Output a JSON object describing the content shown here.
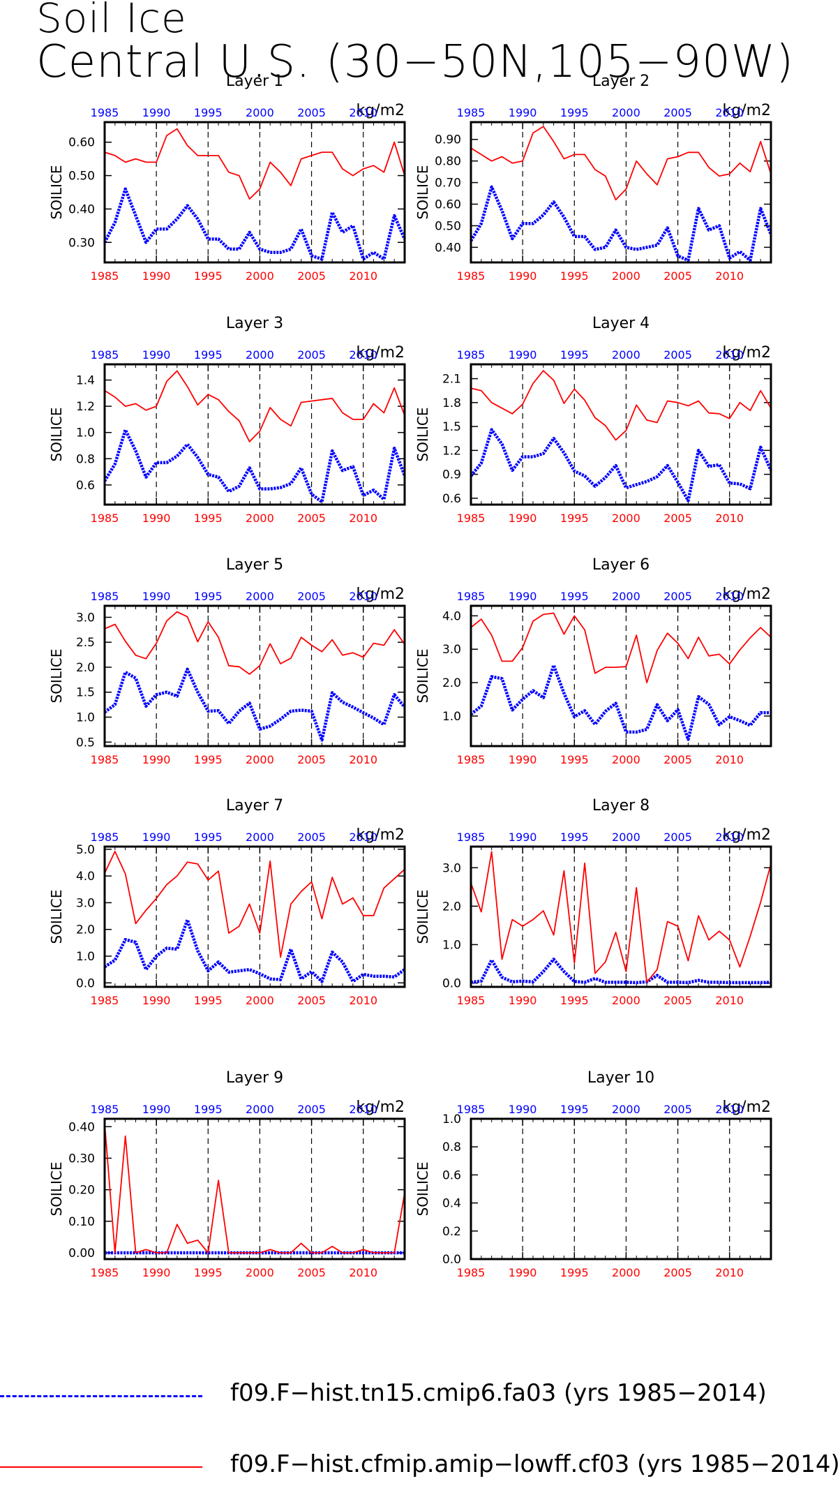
{
  "title": {
    "line1": "Soil Ice",
    "line2": "Central U.S. (30−50N,105−90W)"
  },
  "colors": {
    "blue_series": "#0000ff",
    "red_series": "#ff0000",
    "axis": "#000000",
    "top_axis_labels": "#0000ff",
    "bottom_axis_labels": "#ff0000",
    "grid": "#000000"
  },
  "legend": [
    {
      "label": "f09.F−hist.tn15.cmip6.fa03 (yrs 1985−2014)",
      "color": "#0000ff",
      "style": "dashed"
    },
    {
      "label": "f09.F−hist.cfmip.amip−lowff.cf03 (yrs 1985−2014)",
      "color": "#ff0000",
      "style": "solid"
    }
  ],
  "chart_data": [
    {
      "type": "line",
      "title": "Layer 1",
      "units": "kg/m2",
      "ylabel": "SOILICE",
      "xlim": [
        1985,
        2014
      ],
      "xticks": [
        1985,
        1990,
        1995,
        2000,
        2005,
        2010
      ],
      "ylim": [
        0.24,
        0.66
      ],
      "yticks": [
        0.3,
        0.4,
        0.5,
        0.6
      ],
      "ytick_labels": [
        "0.30",
        "0.40",
        "0.50",
        "0.60"
      ],
      "dashed_gridlines_x": [
        1990,
        1995,
        2000,
        2005,
        2010
      ],
      "series": [
        {
          "color": "#0000ff",
          "style": "dotted-thick",
          "values": [
            0.3,
            0.36,
            0.46,
            0.38,
            0.3,
            0.34,
            0.34,
            0.37,
            0.41,
            0.37,
            0.31,
            0.31,
            0.28,
            0.28,
            0.33,
            0.28,
            0.27,
            0.27,
            0.28,
            0.34,
            0.26,
            0.25,
            0.39,
            0.33,
            0.35,
            0.25,
            0.27,
            0.25,
            0.38,
            0.31
          ]
        },
        {
          "color": "#ff0000",
          "style": "solid",
          "values": [
            0.57,
            0.56,
            0.54,
            0.55,
            0.54,
            0.54,
            0.62,
            0.64,
            0.59,
            0.56,
            0.56,
            0.56,
            0.51,
            0.5,
            0.43,
            0.46,
            0.54,
            0.51,
            0.47,
            0.55,
            0.56,
            0.57,
            0.57,
            0.52,
            0.5,
            0.52,
            0.53,
            0.51,
            0.6,
            0.5
          ]
        }
      ]
    },
    {
      "type": "line",
      "title": "Layer 2",
      "units": "kg/m2",
      "ylabel": "SOILICE",
      "xlim": [
        1985,
        2014
      ],
      "xticks": [
        1985,
        1990,
        1995,
        2000,
        2005,
        2010
      ],
      "ylim": [
        0.33,
        0.98
      ],
      "yticks": [
        0.4,
        0.5,
        0.6,
        0.7,
        0.8,
        0.9
      ],
      "ytick_labels": [
        "0.40",
        "0.50",
        "0.60",
        "0.70",
        "0.80",
        "0.90"
      ],
      "dashed_gridlines_x": [
        1990,
        1995,
        2000,
        2005,
        2010
      ],
      "series": [
        {
          "color": "#0000ff",
          "style": "dotted-thick",
          "values": [
            0.43,
            0.51,
            0.68,
            0.57,
            0.44,
            0.51,
            0.51,
            0.55,
            0.61,
            0.54,
            0.45,
            0.45,
            0.39,
            0.4,
            0.48,
            0.4,
            0.39,
            0.4,
            0.41,
            0.49,
            0.36,
            0.34,
            0.58,
            0.48,
            0.5,
            0.35,
            0.38,
            0.34,
            0.58,
            0.46
          ]
        },
        {
          "color": "#ff0000",
          "style": "solid",
          "values": [
            0.86,
            0.83,
            0.8,
            0.82,
            0.79,
            0.8,
            0.93,
            0.96,
            0.89,
            0.81,
            0.83,
            0.83,
            0.76,
            0.73,
            0.62,
            0.67,
            0.8,
            0.74,
            0.69,
            0.81,
            0.82,
            0.84,
            0.84,
            0.77,
            0.73,
            0.74,
            0.79,
            0.75,
            0.89,
            0.74
          ]
        }
      ]
    },
    {
      "type": "line",
      "title": "Layer 3",
      "units": "kg/m2",
      "ylabel": "SOILICE",
      "xlim": [
        1985,
        2014
      ],
      "xticks": [
        1985,
        1990,
        1995,
        2000,
        2005,
        2010
      ],
      "ylim": [
        0.45,
        1.52
      ],
      "yticks": [
        0.6,
        0.8,
        1.0,
        1.2,
        1.4
      ],
      "ytick_labels": [
        "0.6",
        "0.8",
        "1.0",
        "1.2",
        "1.4"
      ],
      "dashed_gridlines_x": [
        1990,
        1995,
        2000,
        2005,
        2010
      ],
      "series": [
        {
          "color": "#0000ff",
          "style": "dotted-thick",
          "values": [
            0.63,
            0.76,
            1.02,
            0.86,
            0.66,
            0.77,
            0.77,
            0.82,
            0.91,
            0.81,
            0.68,
            0.66,
            0.55,
            0.59,
            0.73,
            0.57,
            0.57,
            0.58,
            0.61,
            0.73,
            0.53,
            0.47,
            0.86,
            0.71,
            0.74,
            0.52,
            0.56,
            0.49,
            0.88,
            0.67
          ]
        },
        {
          "color": "#ff0000",
          "style": "solid",
          "values": [
            1.32,
            1.27,
            1.2,
            1.22,
            1.17,
            1.2,
            1.39,
            1.47,
            1.35,
            1.21,
            1.29,
            1.25,
            1.16,
            1.09,
            0.93,
            1.01,
            1.19,
            1.1,
            1.05,
            1.23,
            1.24,
            1.25,
            1.26,
            1.15,
            1.1,
            1.1,
            1.22,
            1.15,
            1.34,
            1.13
          ]
        }
      ]
    },
    {
      "type": "line",
      "title": "Layer 4",
      "units": "kg/m2",
      "ylabel": "SOILICE",
      "xlim": [
        1985,
        2014
      ],
      "xticks": [
        1985,
        1990,
        1995,
        2000,
        2005,
        2010
      ],
      "ylim": [
        0.52,
        2.28
      ],
      "yticks": [
        0.6,
        0.9,
        1.2,
        1.5,
        1.8,
        2.1
      ],
      "ytick_labels": [
        "0.6",
        "0.9",
        "1.2",
        "1.5",
        "1.8",
        "2.1"
      ],
      "dashed_gridlines_x": [
        1990,
        1995,
        2000,
        2005,
        2010
      ],
      "series": [
        {
          "color": "#0000ff",
          "style": "dotted-thick",
          "values": [
            0.88,
            1.04,
            1.46,
            1.28,
            0.95,
            1.12,
            1.12,
            1.16,
            1.35,
            1.17,
            0.94,
            0.88,
            0.75,
            0.86,
            1.01,
            0.73,
            0.77,
            0.81,
            0.87,
            1.01,
            0.8,
            0.57,
            1.2,
            1.0,
            1.02,
            0.79,
            0.78,
            0.72,
            1.24,
            0.95
          ]
        },
        {
          "color": "#ff0000",
          "style": "solid",
          "values": [
            1.98,
            1.95,
            1.8,
            1.73,
            1.66,
            1.78,
            2.04,
            2.2,
            2.08,
            1.79,
            1.97,
            1.83,
            1.61,
            1.51,
            1.33,
            1.45,
            1.77,
            1.58,
            1.55,
            1.82,
            1.8,
            1.76,
            1.82,
            1.67,
            1.66,
            1.6,
            1.8,
            1.7,
            1.95,
            1.73
          ]
        }
      ]
    },
    {
      "type": "line",
      "title": "Layer 5",
      "units": "kg/m2",
      "ylabel": "SOILICE",
      "xlim": [
        1985,
        2014
      ],
      "xticks": [
        1985,
        1990,
        1995,
        2000,
        2005,
        2010
      ],
      "ylim": [
        0.42,
        3.23
      ],
      "yticks": [
        0.5,
        1.0,
        1.5,
        2.0,
        2.5,
        3.0
      ],
      "ytick_labels": [
        "0.5",
        "1.0",
        "1.5",
        "2.0",
        "2.5",
        "3.0"
      ],
      "dashed_gridlines_x": [
        1990,
        1995,
        2000,
        2005,
        2010
      ],
      "series": [
        {
          "color": "#0000ff",
          "style": "dotted-thick",
          "values": [
            1.1,
            1.25,
            1.9,
            1.78,
            1.22,
            1.45,
            1.5,
            1.42,
            1.96,
            1.5,
            1.12,
            1.13,
            0.87,
            1.12,
            1.28,
            0.76,
            0.82,
            0.96,
            1.12,
            1.14,
            1.12,
            0.54,
            1.49,
            1.3,
            1.2,
            1.09,
            0.98,
            0.85,
            1.45,
            1.2
          ]
        },
        {
          "color": "#ff0000",
          "style": "solid",
          "values": [
            2.77,
            2.86,
            2.52,
            2.24,
            2.17,
            2.48,
            2.93,
            3.11,
            3.01,
            2.51,
            2.91,
            2.6,
            2.03,
            2.01,
            1.86,
            2.03,
            2.47,
            2.07,
            2.18,
            2.6,
            2.44,
            2.31,
            2.55,
            2.24,
            2.29,
            2.2,
            2.48,
            2.44,
            2.75,
            2.46
          ]
        }
      ]
    },
    {
      "type": "line",
      "title": "Layer 6",
      "units": "kg/m2",
      "ylabel": "SOILICE",
      "xlim": [
        1985,
        2014
      ],
      "xticks": [
        1985,
        1990,
        1995,
        2000,
        2005,
        2010
      ],
      "ylim": [
        0.1,
        4.3
      ],
      "yticks": [
        1.0,
        2.0,
        3.0,
        4.0
      ],
      "ytick_labels": [
        "1.0",
        "2.0",
        "3.0",
        "4.0"
      ],
      "dashed_gridlines_x": [
        1990,
        1995,
        2000,
        2005,
        2010
      ],
      "series": [
        {
          "color": "#0000ff",
          "style": "dotted-thick",
          "values": [
            1.05,
            1.3,
            2.18,
            2.12,
            1.18,
            1.5,
            1.76,
            1.55,
            2.52,
            1.68,
            0.98,
            1.16,
            0.75,
            1.14,
            1.38,
            0.52,
            0.52,
            0.6,
            1.34,
            0.86,
            1.19,
            0.3,
            1.58,
            1.35,
            0.74,
            0.98,
            0.86,
            0.72,
            1.1,
            1.1
          ]
        },
        {
          "color": "#ff0000",
          "style": "solid",
          "values": [
            3.65,
            3.9,
            3.42,
            2.64,
            2.64,
            3.05,
            3.84,
            4.04,
            4.08,
            3.45,
            4.0,
            3.58,
            2.28,
            2.46,
            2.46,
            2.48,
            3.42,
            2.0,
            2.96,
            3.48,
            3.18,
            2.72,
            3.36,
            2.8,
            2.85,
            2.56,
            2.98,
            3.34,
            3.65,
            3.36
          ]
        }
      ]
    },
    {
      "type": "line",
      "title": "Layer 7",
      "units": "kg/m2",
      "ylabel": "SOILICE",
      "xlim": [
        1985,
        2014
      ],
      "xticks": [
        1985,
        1990,
        1995,
        2000,
        2005,
        2010
      ],
      "ylim": [
        -0.15,
        5.1
      ],
      "yticks": [
        0.0,
        1.0,
        2.0,
        3.0,
        4.0,
        5.0
      ],
      "ytick_labels": [
        "0.0",
        "1.0",
        "2.0",
        "3.0",
        "4.0",
        "5.0"
      ],
      "dashed_gridlines_x": [
        1990,
        1995,
        2000,
        2005,
        2010
      ],
      "series": [
        {
          "color": "#0000ff",
          "style": "dotted-thick",
          "values": [
            0.6,
            0.85,
            1.62,
            1.52,
            0.5,
            1.0,
            1.3,
            1.26,
            2.36,
            1.2,
            0.45,
            0.78,
            0.4,
            0.45,
            0.5,
            0.34,
            0.15,
            0.12,
            1.26,
            0.15,
            0.42,
            0.05,
            1.15,
            0.78,
            0.05,
            0.32,
            0.25,
            0.25,
            0.22,
            0.5
          ]
        },
        {
          "color": "#ff0000",
          "style": "solid",
          "values": [
            4.1,
            4.92,
            4.08,
            2.22,
            2.72,
            3.16,
            3.68,
            4.0,
            4.52,
            4.45,
            3.85,
            4.18,
            1.86,
            2.12,
            2.95,
            1.86,
            4.56,
            0.96,
            2.95,
            3.42,
            3.78,
            2.4,
            3.95,
            2.95,
            3.18,
            2.52,
            2.52,
            3.55,
            3.9,
            4.25
          ]
        }
      ]
    },
    {
      "type": "line",
      "title": "Layer 8",
      "units": "kg/m2",
      "ylabel": "SOILICE",
      "xlim": [
        1985,
        2014
      ],
      "xticks": [
        1985,
        1990,
        1995,
        2000,
        2005,
        2010
      ],
      "ylim": [
        -0.1,
        3.55
      ],
      "yticks": [
        0.0,
        1.0,
        2.0,
        3.0
      ],
      "ytick_labels": [
        "0.0",
        "1.0",
        "2.0",
        "3.0"
      ],
      "dashed_gridlines_x": [
        1990,
        1995,
        2000,
        2005,
        2010
      ],
      "series": [
        {
          "color": "#0000ff",
          "style": "dotted-thick",
          "values": [
            0.02,
            0.05,
            0.6,
            0.15,
            0.03,
            0.05,
            0.03,
            0.3,
            0.62,
            0.3,
            0.04,
            0.02,
            0.12,
            0.02,
            0.02,
            0.02,
            0.01,
            0.03,
            0.2,
            0.02,
            0.02,
            0.01,
            0.07,
            0.02,
            0.02,
            0.01,
            0.01,
            0.01,
            0.01,
            0.02
          ]
        },
        {
          "color": "#ff0000",
          "style": "solid",
          "values": [
            2.6,
            1.85,
            3.42,
            0.62,
            1.65,
            1.48,
            1.65,
            1.88,
            1.25,
            2.92,
            0.52,
            3.12,
            0.25,
            0.55,
            1.32,
            0.3,
            2.48,
            0.02,
            0.35,
            1.6,
            1.48,
            0.58,
            1.75,
            1.12,
            1.35,
            1.12,
            0.42,
            1.22,
            2.1,
            3.1
          ]
        }
      ]
    },
    {
      "type": "line",
      "title": "Layer 9",
      "units": "kg/m2",
      "ylabel": "SOILICE",
      "xlim": [
        1985,
        2014
      ],
      "xticks": [
        1985,
        1990,
        1995,
        2000,
        2005,
        2010
      ],
      "ylim": [
        -0.02,
        0.425
      ],
      "yticks": [
        0.0,
        0.1,
        0.2,
        0.3,
        0.4
      ],
      "ytick_labels": [
        "0.00",
        "0.10",
        "0.20",
        "0.30",
        "0.40"
      ],
      "dashed_gridlines_x": [
        1990,
        1995,
        2000,
        2005,
        2010
      ],
      "series": [
        {
          "color": "#0000ff",
          "style": "dotted-thick",
          "values": [
            0,
            0,
            0,
            0,
            0,
            0,
            0,
            0,
            0,
            0,
            0,
            0,
            0,
            0,
            0,
            0,
            0,
            0,
            0,
            0,
            0,
            0,
            0,
            0,
            0,
            0,
            0,
            0,
            0,
            0
          ]
        },
        {
          "color": "#ff0000",
          "style": "solid",
          "values": [
            0.41,
            0.0,
            0.37,
            0.0,
            0.01,
            0.0,
            0.0,
            0.09,
            0.03,
            0.04,
            0.0,
            0.23,
            0.0,
            0.0,
            0.0,
            0.0,
            0.01,
            0.0,
            0.0,
            0.03,
            0.0,
            0.0,
            0.02,
            0.0,
            0.0,
            0.01,
            0.0,
            0.0,
            0.0,
            0.19
          ]
        }
      ]
    },
    {
      "type": "line",
      "title": "Layer 10",
      "units": "kg/m2",
      "ylabel": "SOILICE",
      "xlim": [
        1985,
        2014
      ],
      "xticks": [
        1985,
        1990,
        1995,
        2000,
        2005,
        2010
      ],
      "ylim": [
        0.0,
        1.0
      ],
      "yticks": [
        0.0,
        0.2,
        0.4,
        0.6,
        0.8,
        1.0
      ],
      "ytick_labels": [
        "0.0",
        "0.2",
        "0.4",
        "0.6",
        "0.8",
        "1.0"
      ],
      "dashed_gridlines_x": [
        1990,
        1995,
        2000,
        2005,
        2010
      ],
      "series": []
    }
  ]
}
